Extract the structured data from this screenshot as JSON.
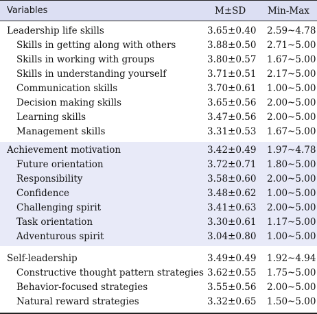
{
  "table": {
    "headers": {
      "variables": "Variables",
      "mean_sd": "M±SD",
      "range": "Min-Max"
    },
    "sections": [
      {
        "name": "Leadership life skills",
        "mean_sd": "3.65±0.40",
        "range": "2.59~4.78",
        "rows": [
          {
            "label": "Skills in getting along with others",
            "mean_sd": "3.88±0.50",
            "range": "2.71~5.00"
          },
          {
            "label": "Skills in working with groups",
            "mean_sd": "3.80±0.57",
            "range": "1.67~5.00"
          },
          {
            "label": "Skills in understanding yourself",
            "mean_sd": "3.71±0.51",
            "range": "2.17~5.00"
          },
          {
            "label": "Communication skills",
            "mean_sd": "3.70±0.61",
            "range": "1.00~5.00"
          },
          {
            "label": "Decision making skills",
            "mean_sd": "3.65±0.56",
            "range": "2.00~5.00"
          },
          {
            "label": "Learning skills",
            "mean_sd": "3.47±0.56",
            "range": "2.00~5.00"
          },
          {
            "label": "Management skills",
            "mean_sd": "3.31±0.53",
            "range": "1.67~5.00"
          }
        ]
      },
      {
        "name": "Achievement motivation",
        "mean_sd": "3.42±0.49",
        "range": "1.97~4.78",
        "rows": [
          {
            "label": "Future orientation",
            "mean_sd": "3.72±0.71",
            "range": "1.80~5.00"
          },
          {
            "label": "Responsibility",
            "mean_sd": "3.58±0.60",
            "range": "2.00~5.00"
          },
          {
            "label": "Confidence",
            "mean_sd": "3.48±0.62",
            "range": "1.00~5.00"
          },
          {
            "label": "Challenging spirit",
            "mean_sd": "3.41±0.63",
            "range": "2.00~5.00"
          },
          {
            "label": "Task orientation",
            "mean_sd": "3.30±0.61",
            "range": "1.17~5.00"
          },
          {
            "label": "Adventurous spirit",
            "mean_sd": "3.04±0.80",
            "range": "1.00~5.00"
          }
        ]
      },
      {
        "name": "Self-leadership",
        "mean_sd": "3.49±0.49",
        "range": "1.92~4.94",
        "rows": [
          {
            "label": "Constructive thought pattern strategies",
            "mean_sd": "3.62±0.55",
            "range": "1.75~5.00"
          },
          {
            "label": "Behavior-focused strategies",
            "mean_sd": "3.55±0.56",
            "range": "2.00~5.00"
          },
          {
            "label": "Natural reward strategies",
            "mean_sd": "3.32±0.65",
            "range": "1.50~5.00"
          }
        ]
      }
    ]
  }
}
